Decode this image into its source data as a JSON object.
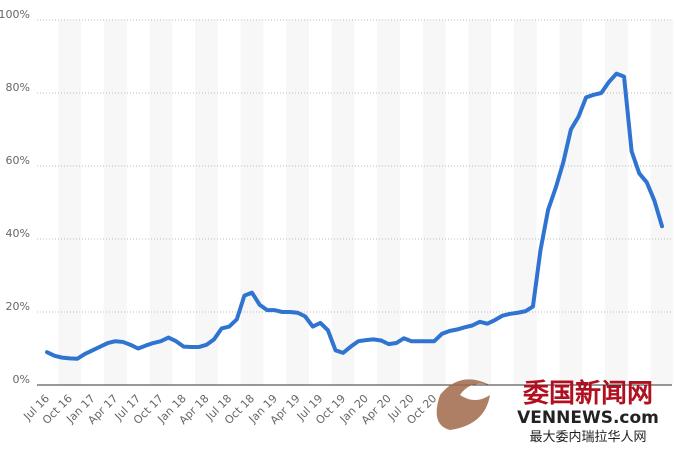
{
  "chart_data": {
    "type": "line",
    "categories": [
      "Jul 16",
      null,
      null,
      "Oct 16",
      null,
      null,
      "Jan 17",
      null,
      null,
      "Apr 17",
      null,
      null,
      "Jul 17",
      null,
      null,
      "Oct 17",
      null,
      null,
      "Jan 18",
      null,
      null,
      "Apr 18",
      null,
      null,
      "Jul 18",
      null,
      null,
      "Oct 18",
      null,
      null,
      "Jan 19",
      null,
      null,
      "Apr 19",
      null,
      null,
      "Jul 19",
      null,
      null,
      "Oct 19",
      null,
      null,
      "Jan 20",
      null,
      null,
      "Apr 20",
      null,
      null,
      "Jul 20",
      null,
      null,
      "Oct 20",
      null,
      null,
      null,
      null,
      null,
      null,
      null,
      null,
      null,
      null,
      null,
      null,
      null,
      null,
      null,
      null,
      null,
      null,
      null,
      null,
      null,
      null,
      null,
      null,
      null,
      null,
      null,
      null,
      null,
      null
    ],
    "series": [
      {
        "color": "#2f74d0",
        "values": [
          9,
          8,
          7.5,
          7.3,
          7.2,
          8.5,
          9.5,
          10.5,
          11.5,
          12,
          11.8,
          11,
          10,
          10.8,
          11.5,
          12,
          13,
          12,
          10.5,
          10.4,
          10.4,
          11,
          12.5,
          15.5,
          16,
          18,
          24.5,
          25.3,
          22,
          20.5,
          20.5,
          20,
          20,
          19.8,
          18.8,
          16,
          17,
          15,
          9.5,
          8.8,
          10.5,
          12,
          12.3,
          12.5,
          12.2,
          11.2,
          11.5,
          12.8,
          12,
          12,
          12,
          12,
          14,
          14.8,
          15.2,
          15.8,
          16.3,
          17.3,
          16.8,
          17.8,
          19,
          19.5,
          19.8,
          20.2,
          21.5,
          37,
          48,
          54,
          61,
          70,
          73.5,
          78.8,
          79.5,
          80,
          83,
          85.3,
          84.5,
          64,
          58,
          55.5,
          50.5,
          43.5
        ]
      }
    ],
    "ylim": [
      0,
      100
    ],
    "yticks": [
      {
        "value": 0,
        "label": "0%"
      },
      {
        "value": 20,
        "label": "20%"
      },
      {
        "value": 40,
        "label": "40%"
      },
      {
        "value": 60,
        "label": "60%"
      },
      {
        "value": 80,
        "label": "80%"
      },
      {
        "value": 100,
        "label": "100%"
      }
    ],
    "grid": true
  },
  "watermark": {
    "title": "委国新闻网",
    "site": "VENNEWS.com",
    "slogan": "最大委内瑞拉华人网"
  }
}
